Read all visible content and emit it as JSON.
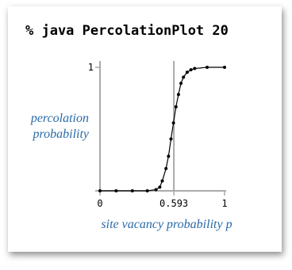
{
  "chart_data": {
    "type": "line",
    "title": "% java PercolationPlot 20",
    "ylabel": "percolation probability",
    "xlabel": "site vacancy probability p",
    "x": [
      0,
      0.13,
      0.26,
      0.38,
      0.45,
      0.48,
      0.5,
      0.53,
      0.55,
      0.57,
      0.59,
      0.61,
      0.63,
      0.65,
      0.67,
      0.7,
      0.73,
      0.76,
      0.86,
      1.0
    ],
    "series": [
      {
        "color": "#000000",
        "values": [
          0,
          0,
          0,
          0,
          0.01,
          0.03,
          0.08,
          0.18,
          0.28,
          0.42,
          0.55,
          0.68,
          0.78,
          0.87,
          0.92,
          0.96,
          0.98,
          0.99,
          1,
          1
        ]
      }
    ],
    "xlim": [
      0,
      1
    ],
    "ylim": [
      0,
      1
    ],
    "xticks": [
      0,
      0.593,
      1
    ],
    "yticks": [
      1
    ],
    "vline": 0.593
  }
}
